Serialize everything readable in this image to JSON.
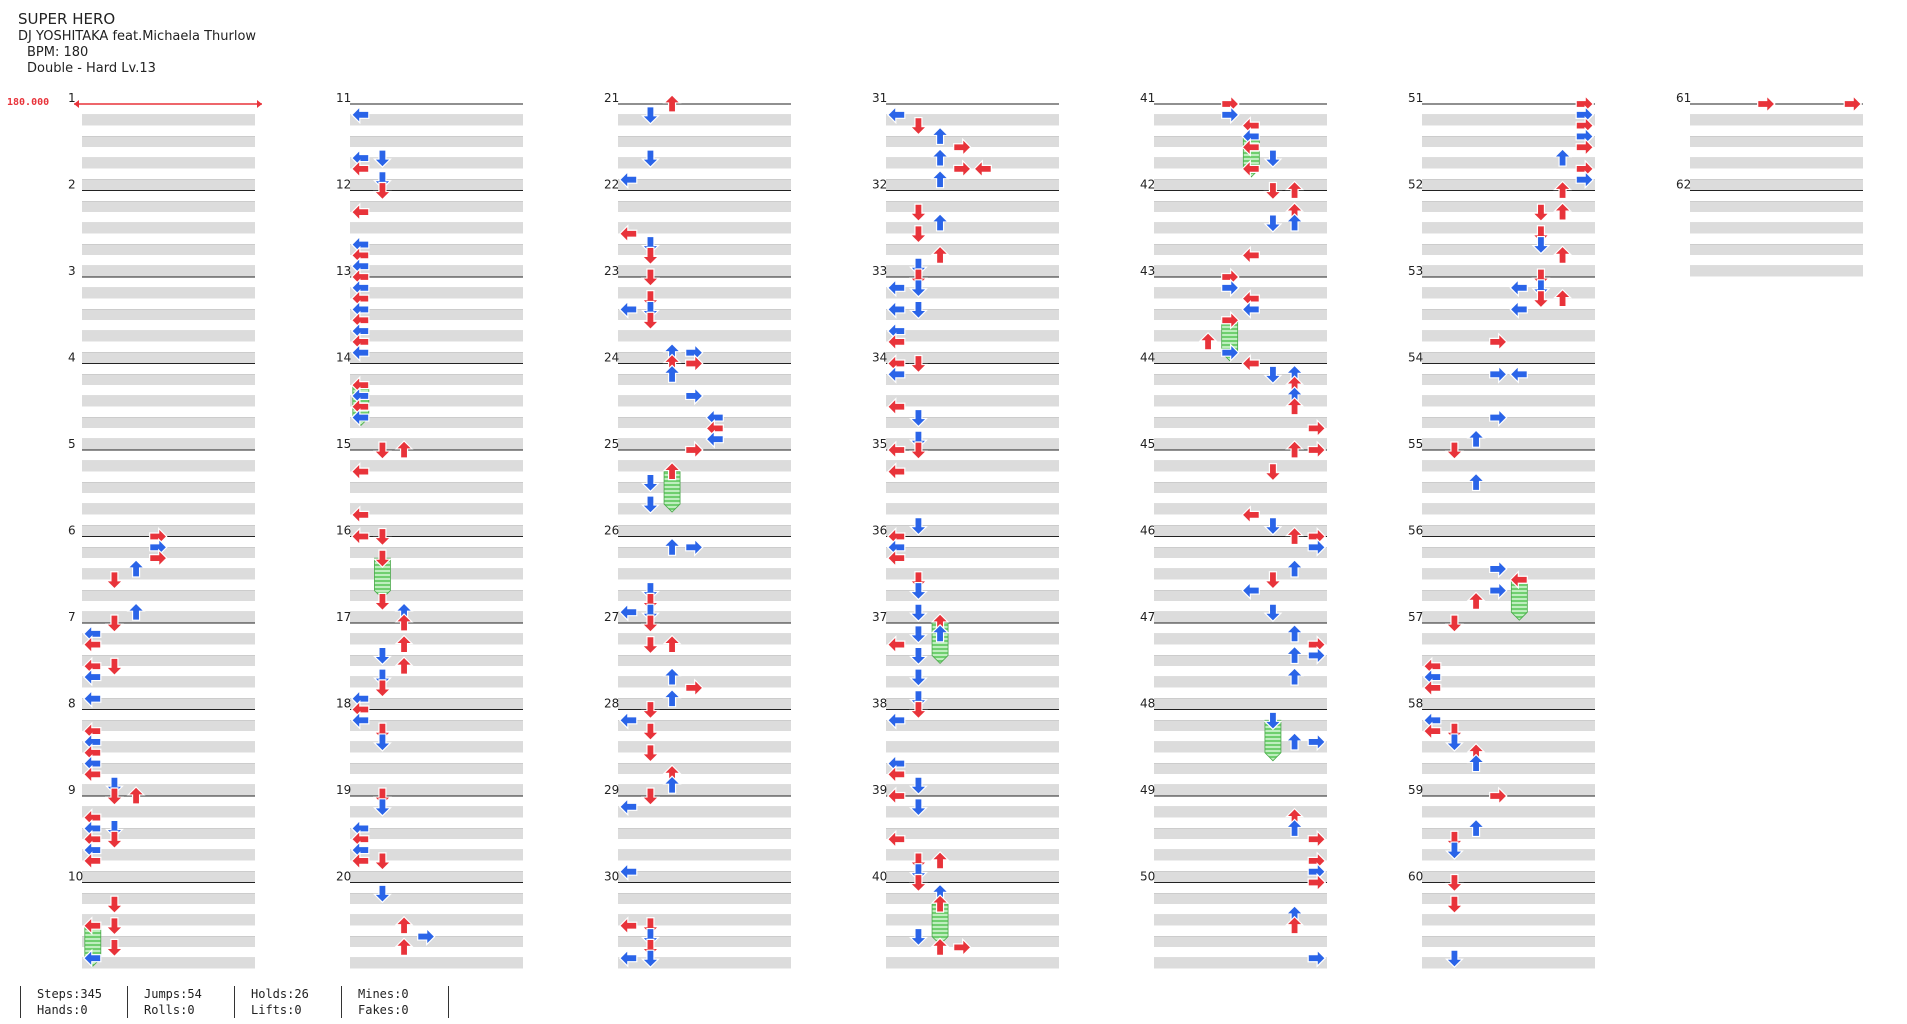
{
  "song": {
    "title": "SUPER HERO",
    "artist": "DJ YOSHITAKA feat.Michaela Thurlow",
    "bpm_line": "BPM: 180",
    "difficulty": "Double - Hard  Lv.13"
  },
  "bpm_marker": "180.000",
  "measure_labels": [
    "1",
    "2",
    "3",
    "4",
    "5",
    "6",
    "7",
    "8",
    "9",
    "10",
    "11",
    "12",
    "13",
    "14",
    "15",
    "16",
    "17",
    "18",
    "19",
    "20",
    "21",
    "22",
    "23",
    "24",
    "25",
    "26",
    "27",
    "28",
    "29",
    "30",
    "31",
    "32",
    "33",
    "34",
    "35",
    "36",
    "37",
    "38",
    "39",
    "40",
    "41",
    "42",
    "43",
    "44",
    "45",
    "46",
    "47",
    "48",
    "49",
    "50",
    "51",
    "52",
    "53",
    "54",
    "55",
    "56",
    "57",
    "58",
    "59",
    "60",
    "61",
    "62"
  ],
  "colors": {
    "quarter": "#e8333a",
    "eighth": "#2a64e8",
    "hold": "#7fd67f",
    "band": "#dcdcdc",
    "line": "#222222"
  },
  "stats": {
    "steps": "Steps:345",
    "hands": "Hands:0",
    "jumps": "Jumps:54",
    "rolls": "Rolls:0",
    "holds": "Holds:26",
    "lifts": "Lifts:0",
    "mines": "Mines:0",
    "fakes": "Fakes:0"
  }
}
